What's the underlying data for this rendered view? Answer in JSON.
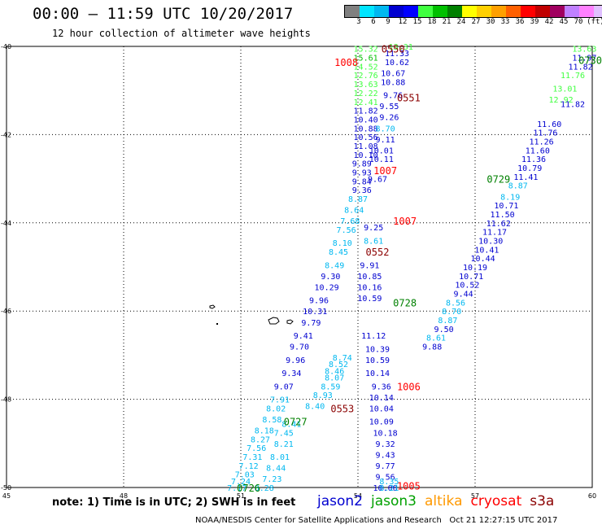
{
  "header": {
    "title": "00:00 – 11:59 UTC 10/20/2017",
    "subtitle": "12 hour collection of altimeter wave heights"
  },
  "colorbar": {
    "colors": [
      "#808080",
      "#00e5ff",
      "#00b8f0",
      "#0000d0",
      "#0000ff",
      "#40ff40",
      "#00c000",
      "#008000",
      "#ffff00",
      "#ffd000",
      "#ffa000",
      "#ff6000",
      "#ff0000",
      "#c00000",
      "#a00060",
      "#c080ff",
      "#ff80ff",
      "#e0c0ff",
      "#000000"
    ],
    "labels": [
      "3",
      "6",
      "9",
      "12",
      "15",
      "18",
      "21",
      "24",
      "27",
      "30",
      "33",
      "36",
      "39",
      "42",
      "45",
      "70",
      "(ft)"
    ]
  },
  "map": {
    "lon_ticks": [
      "45",
      "48",
      "51",
      "54",
      "57",
      "60"
    ],
    "lat_ticks": [
      "-40",
      "-42",
      "-44",
      "-46",
      "-48",
      "-50"
    ]
  },
  "passes": [
    {
      "id": "0550",
      "sat": "cryosat",
      "color": "#8b0000",
      "lon": 54.9,
      "lat": -40.05
    },
    {
      "id": "1008",
      "sat": "altika-red",
      "color": "#ff0000",
      "lon": 53.7,
      "lat": -40.35
    },
    {
      "id": "0551",
      "sat": "cryosat",
      "color": "#8b0000",
      "lon": 55.3,
      "lat": -41.15
    },
    {
      "id": "1007",
      "sat": "red",
      "color": "#ff0000",
      "lon": 54.7,
      "lat": -42.8
    },
    {
      "id": "1007",
      "sat": "red",
      "color": "#ff0000",
      "lon": 55.2,
      "lat": -43.95
    },
    {
      "id": "0552",
      "sat": "cryosat",
      "color": "#8b0000",
      "lon": 54.5,
      "lat": -44.65
    },
    {
      "id": "0728",
      "sat": "jason3",
      "color": "#008000",
      "lon": 55.2,
      "lat": -45.8
    },
    {
      "id": "1006",
      "sat": "red",
      "color": "#ff0000",
      "lon": 55.3,
      "lat": -47.7
    },
    {
      "id": "0553",
      "sat": "cryosat",
      "color": "#8b0000",
      "lon": 53.6,
      "lat": -48.2
    },
    {
      "id": "0727",
      "sat": "jason3",
      "color": "#008000",
      "lon": 52.4,
      "lat": -48.5
    },
    {
      "id": "1005",
      "sat": "red",
      "color": "#ff0000",
      "lon": 55.3,
      "lat": -49.95
    },
    {
      "id": "0726",
      "sat": "jason3",
      "color": "#008000",
      "lon": 51.2,
      "lat": -50.0
    },
    {
      "id": "0729",
      "sat": "jason3",
      "color": "#008000",
      "lon": 57.6,
      "lat": -43.0
    },
    {
      "id": "0730",
      "sat": "jason3",
      "color": "#008000",
      "lon": 60.0,
      "lat": -40.3
    }
  ],
  "swh_labels": [
    {
      "v": "15.32",
      "lon": 54.2,
      "lat": -40.05,
      "c": "#40ff40"
    },
    {
      "v": "15.61",
      "lon": 54.2,
      "lat": -40.25,
      "c": "#00c000"
    },
    {
      "v": "14.52",
      "lon": 54.2,
      "lat": -40.45,
      "c": "#40ff40"
    },
    {
      "v": "12.76",
      "lon": 54.2,
      "lat": -40.65,
      "c": "#40ff40"
    },
    {
      "v": "13.63",
      "lon": 54.2,
      "lat": -40.85,
      "c": "#40ff40"
    },
    {
      "v": "12.22",
      "lon": 54.2,
      "lat": -41.05,
      "c": "#40ff40"
    },
    {
      "v": "12.41",
      "lon": 54.2,
      "lat": -41.25,
      "c": "#40ff40"
    },
    {
      "v": "11.82",
      "lon": 54.2,
      "lat": -41.45,
      "c": "#0000d0"
    },
    {
      "v": "10.40",
      "lon": 54.2,
      "lat": -41.65,
      "c": "#0000d0"
    },
    {
      "v": "10.88",
      "lon": 54.2,
      "lat": -41.85,
      "c": "#0000d0"
    },
    {
      "v": "10.56",
      "lon": 54.2,
      "lat": -42.05,
      "c": "#0000d0"
    },
    {
      "v": "11.08",
      "lon": 54.2,
      "lat": -42.25,
      "c": "#0000d0"
    },
    {
      "v": "10.10",
      "lon": 54.2,
      "lat": -42.45,
      "c": "#0000d0"
    },
    {
      "v": "9.89",
      "lon": 54.1,
      "lat": -42.65,
      "c": "#0000d0"
    },
    {
      "v": "9.93",
      "lon": 54.1,
      "lat": -42.85,
      "c": "#0000d0"
    },
    {
      "v": "9.84",
      "lon": 54.1,
      "lat": -43.05,
      "c": "#0000d0"
    },
    {
      "v": "9.36",
      "lon": 54.1,
      "lat": -43.25,
      "c": "#0000d0"
    },
    {
      "v": "8.87",
      "lon": 54.0,
      "lat": -43.45,
      "c": "#00b8f0"
    },
    {
      "v": "8.64",
      "lon": 53.9,
      "lat": -43.7,
      "c": "#00b8f0"
    },
    {
      "v": "7.68",
      "lon": 53.8,
      "lat": -43.95,
      "c": "#00b8f0"
    },
    {
      "v": "7.56",
      "lon": 53.7,
      "lat": -44.15,
      "c": "#00b8f0"
    },
    {
      "v": "8.10",
      "lon": 53.6,
      "lat": -44.45,
      "c": "#00b8f0"
    },
    {
      "v": "8.45",
      "lon": 53.5,
      "lat": -44.65,
      "c": "#00b8f0"
    },
    {
      "v": "8.49",
      "lon": 53.4,
      "lat": -44.95,
      "c": "#00b8f0"
    },
    {
      "v": "9.30",
      "lon": 53.3,
      "lat": -45.2,
      "c": "#0000d0"
    },
    {
      "v": "10.29",
      "lon": 53.2,
      "lat": -45.45,
      "c": "#0000d0"
    },
    {
      "v": "9.96",
      "lon": 53.0,
      "lat": -45.75,
      "c": "#0000d0"
    },
    {
      "v": "10.31",
      "lon": 52.9,
      "lat": -46.0,
      "c": "#0000d0"
    },
    {
      "v": "9.79",
      "lon": 52.8,
      "lat": -46.25,
      "c": "#0000d0"
    },
    {
      "v": "9.41",
      "lon": 52.6,
      "lat": -46.55,
      "c": "#0000d0"
    },
    {
      "v": "9.70",
      "lon": 52.5,
      "lat": -46.8,
      "c": "#0000d0"
    },
    {
      "v": "9.96",
      "lon": 52.4,
      "lat": -47.1,
      "c": "#0000d0"
    },
    {
      "v": "9.34",
      "lon": 52.3,
      "lat": -47.4,
      "c": "#0000d0"
    },
    {
      "v": "9.07",
      "lon": 52.1,
      "lat": -47.7,
      "c": "#0000d0"
    },
    {
      "v": "7.91",
      "lon": 52.0,
      "lat": -48.0,
      "c": "#00b8f0"
    },
    {
      "v": "8.02",
      "lon": 51.9,
      "lat": -48.2,
      "c": "#00b8f0"
    },
    {
      "v": "8.58",
      "lon": 51.8,
      "lat": -48.45,
      "c": "#00b8f0"
    },
    {
      "v": "8.18",
      "lon": 51.6,
      "lat": -48.7,
      "c": "#00b8f0"
    },
    {
      "v": "8.27",
      "lon": 51.5,
      "lat": -48.9,
      "c": "#00b8f0"
    },
    {
      "v": "7.56",
      "lon": 51.4,
      "lat": -49.1,
      "c": "#00b8f0"
    },
    {
      "v": "7.31",
      "lon": 51.3,
      "lat": -49.3,
      "c": "#00b8f0"
    },
    {
      "v": "7.12",
      "lon": 51.2,
      "lat": -49.5,
      "c": "#00b8f0"
    },
    {
      "v": "7.03",
      "lon": 51.1,
      "lat": -49.7,
      "c": "#00b8f0"
    },
    {
      "v": "7.24",
      "lon": 51.0,
      "lat": -49.85,
      "c": "#00b8f0"
    },
    {
      "v": "7.17",
      "lon": 50.9,
      "lat": -50.0,
      "c": "#00b8f0"
    },
    {
      "v": "13.31",
      "lon": 55.1,
      "lat": -40.0,
      "c": "#40ff40"
    },
    {
      "v": "11.33",
      "lon": 55.0,
      "lat": -40.15,
      "c": "#0000d0"
    },
    {
      "v": "10.62",
      "lon": 55.0,
      "lat": -40.35,
      "c": "#0000d0"
    },
    {
      "v": "10.67",
      "lon": 54.9,
      "lat": -40.6,
      "c": "#0000d0"
    },
    {
      "v": "10.88",
      "lon": 54.9,
      "lat": -40.8,
      "c": "#0000d0"
    },
    {
      "v": "9.76",
      "lon": 54.9,
      "lat": -41.1,
      "c": "#0000d0"
    },
    {
      "v": "9.55",
      "lon": 54.8,
      "lat": -41.35,
      "c": "#0000d0"
    },
    {
      "v": "9.26",
      "lon": 54.8,
      "lat": -41.6,
      "c": "#0000d0"
    },
    {
      "v": "8.70",
      "lon": 54.7,
      "lat": -41.85,
      "c": "#00b8f0"
    },
    {
      "v": "9.11",
      "lon": 54.7,
      "lat": -42.1,
      "c": "#0000d0"
    },
    {
      "v": "10.01",
      "lon": 54.6,
      "lat": -42.35,
      "c": "#0000d0"
    },
    {
      "v": "10.11",
      "lon": 54.6,
      "lat": -42.55,
      "c": "#0000d0"
    },
    {
      "v": "9.67",
      "lon": 54.5,
      "lat": -43.0,
      "c": "#0000d0"
    },
    {
      "v": "9.25",
      "lon": 54.4,
      "lat": -44.1,
      "c": "#0000d0"
    },
    {
      "v": "8.61",
      "lon": 54.4,
      "lat": -44.4,
      "c": "#00b8f0"
    },
    {
      "v": "9.91",
      "lon": 54.3,
      "lat": -44.95,
      "c": "#0000d0"
    },
    {
      "v": "10.85",
      "lon": 54.3,
      "lat": -45.2,
      "c": "#0000d0"
    },
    {
      "v": "10.16",
      "lon": 54.3,
      "lat": -45.45,
      "c": "#0000d0"
    },
    {
      "v": "10.59",
      "lon": 54.3,
      "lat": -45.7,
      "c": "#0000d0"
    },
    {
      "v": "11.12",
      "lon": 54.4,
      "lat": -46.55,
      "c": "#0000d0"
    },
    {
      "v": "10.39",
      "lon": 54.5,
      "lat": -46.85,
      "c": "#0000d0"
    },
    {
      "v": "10.59",
      "lon": 54.5,
      "lat": -47.1,
      "c": "#0000d0"
    },
    {
      "v": "10.14",
      "lon": 54.5,
      "lat": -47.4,
      "c": "#0000d0"
    },
    {
      "v": "9.36",
      "lon": 54.6,
      "lat": -47.7,
      "c": "#0000d0"
    },
    {
      "v": "10.14",
      "lon": 54.6,
      "lat": -47.95,
      "c": "#0000d0"
    },
    {
      "v": "10.04",
      "lon": 54.6,
      "lat": -48.2,
      "c": "#0000d0"
    },
    {
      "v": "10.09",
      "lon": 54.6,
      "lat": -48.5,
      "c": "#0000d0"
    },
    {
      "v": "10.18",
      "lon": 54.7,
      "lat": -48.75,
      "c": "#0000d0"
    },
    {
      "v": "9.32",
      "lon": 54.7,
      "lat": -49.0,
      "c": "#0000d0"
    },
    {
      "v": "9.43",
      "lon": 54.7,
      "lat": -49.25,
      "c": "#0000d0"
    },
    {
      "v": "9.77",
      "lon": 54.7,
      "lat": -49.5,
      "c": "#0000d0"
    },
    {
      "v": "9.56",
      "lon": 54.7,
      "lat": -49.75,
      "c": "#0000d0"
    },
    {
      "v": "10.00",
      "lon": 54.7,
      "lat": -50.0,
      "c": "#0000d0"
    },
    {
      "v": "13.63",
      "lon": 59.8,
      "lat": -40.05,
      "c": "#40ff40"
    },
    {
      "v": "11.97",
      "lon": 59.8,
      "lat": -40.25,
      "c": "#0000d0"
    },
    {
      "v": "11.82",
      "lon": 59.7,
      "lat": -40.45,
      "c": "#0000d0"
    },
    {
      "v": "11.76",
      "lon": 59.5,
      "lat": -40.65,
      "c": "#40ff40"
    },
    {
      "v": "13.01",
      "lon": 59.3,
      "lat": -40.95,
      "c": "#40ff40"
    },
    {
      "v": "12.92",
      "lon": 59.2,
      "lat": -41.2,
      "c": "#40ff40"
    },
    {
      "v": "11.82",
      "lon": 59.5,
      "lat": -41.3,
      "c": "#0000d0"
    },
    {
      "v": "11.60",
      "lon": 58.9,
      "lat": -41.75,
      "c": "#0000d0"
    },
    {
      "v": "11.76",
      "lon": 58.8,
      "lat": -41.95,
      "c": "#0000d0"
    },
    {
      "v": "11.26",
      "lon": 58.7,
      "lat": -42.15,
      "c": "#0000d0"
    },
    {
      "v": "11.60",
      "lon": 58.6,
      "lat": -42.35,
      "c": "#0000d0"
    },
    {
      "v": "11.36",
      "lon": 58.5,
      "lat": -42.55,
      "c": "#0000d0"
    },
    {
      "v": "10.79",
      "lon": 58.4,
      "lat": -42.75,
      "c": "#0000d0"
    },
    {
      "v": "11.41",
      "lon": 58.3,
      "lat": -42.95,
      "c": "#0000d0"
    },
    {
      "v": "8.87",
      "lon": 58.1,
      "lat": -43.15,
      "c": "#00b8f0"
    },
    {
      "v": "8.19",
      "lon": 57.9,
      "lat": -43.4,
      "c": "#00b8f0"
    },
    {
      "v": "10.71",
      "lon": 57.8,
      "lat": -43.6,
      "c": "#0000d0"
    },
    {
      "v": "11.50",
      "lon": 57.7,
      "lat": -43.8,
      "c": "#0000d0"
    },
    {
      "v": "11.62",
      "lon": 57.6,
      "lat": -44.0,
      "c": "#0000d0"
    },
    {
      "v": "11.17",
      "lon": 57.5,
      "lat": -44.2,
      "c": "#0000d0"
    },
    {
      "v": "10.30",
      "lon": 57.4,
      "lat": -44.4,
      "c": "#0000d0"
    },
    {
      "v": "10.41",
      "lon": 57.3,
      "lat": -44.6,
      "c": "#0000d0"
    },
    {
      "v": "10.44",
      "lon": 57.2,
      "lat": -44.8,
      "c": "#0000d0"
    },
    {
      "v": "10.19",
      "lon": 57.0,
      "lat": -45.0,
      "c": "#0000d0"
    },
    {
      "v": "10.71",
      "lon": 56.9,
      "lat": -45.2,
      "c": "#0000d0"
    },
    {
      "v": "10.52",
      "lon": 56.8,
      "lat": -45.4,
      "c": "#0000d0"
    },
    {
      "v": "9.44",
      "lon": 56.7,
      "lat": -45.6,
      "c": "#0000d0"
    },
    {
      "v": "8.56",
      "lon": 56.5,
      "lat": -45.8,
      "c": "#00b8f0"
    },
    {
      "v": "8.70",
      "lon": 56.4,
      "lat": -46.0,
      "c": "#00b8f0"
    },
    {
      "v": "8.87",
      "lon": 56.3,
      "lat": -46.2,
      "c": "#00b8f0"
    },
    {
      "v": "9.50",
      "lon": 56.2,
      "lat": -46.4,
      "c": "#0000d0"
    },
    {
      "v": "8.61",
      "lon": 56.0,
      "lat": -46.6,
      "c": "#00b8f0"
    },
    {
      "v": "9.88",
      "lon": 55.9,
      "lat": -46.8,
      "c": "#0000d0"
    },
    {
      "v": "8.74",
      "lon": 53.6,
      "lat": -47.05,
      "c": "#00b8f0"
    },
    {
      "v": "8.52",
      "lon": 53.5,
      "lat": -47.2,
      "c": "#00b8f0"
    },
    {
      "v": "8.46",
      "lon": 53.4,
      "lat": -47.35,
      "c": "#00b8f0"
    },
    {
      "v": "8.07",
      "lon": 53.4,
      "lat": -47.5,
      "c": "#00b8f0"
    },
    {
      "v": "8.59",
      "lon": 53.3,
      "lat": -47.7,
      "c": "#00b8f0"
    },
    {
      "v": "8.93",
      "lon": 53.1,
      "lat": -47.9,
      "c": "#00b8f0"
    },
    {
      "v": "8.40",
      "lon": 52.9,
      "lat": -48.15,
      "c": "#00b8f0"
    },
    {
      "v": "8.41",
      "lon": 52.3,
      "lat": -48.55,
      "c": "#00b8f0"
    },
    {
      "v": "7.45",
      "lon": 52.1,
      "lat": -48.75,
      "c": "#00b8f0"
    },
    {
      "v": "8.21",
      "lon": 52.1,
      "lat": -49.0,
      "c": "#00b8f0"
    },
    {
      "v": "8.01",
      "lon": 52.0,
      "lat": -49.3,
      "c": "#00b8f0"
    },
    {
      "v": "8.44",
      "lon": 51.9,
      "lat": -49.55,
      "c": "#00b8f0"
    },
    {
      "v": "7.23",
      "lon": 51.8,
      "lat": -49.8,
      "c": "#00b8f0"
    },
    {
      "v": "8.28",
      "lon": 51.6,
      "lat": -50.0,
      "c": "#00b8f0"
    },
    {
      "v": "8.35",
      "lon": 54.8,
      "lat": -49.85,
      "c": "#00b8f0"
    },
    {
      "v": "8.21",
      "lon": 54.8,
      "lat": -50.0,
      "c": "#00b8f0"
    }
  ],
  "note": "note: 1) Time is in UTC; 2) SWH is in feet",
  "legend": [
    {
      "label": "jason2",
      "color": "#0000d0"
    },
    {
      "label": "jason3",
      "color": "#00a000"
    },
    {
      "label": "altika",
      "color": "#ff9900"
    },
    {
      "label": "cryosat",
      "color": "#ff0000"
    },
    {
      "label": "s3a",
      "color": "#8b0000"
    }
  ],
  "footer": "NOAA/NESDIS Center for Satellite Applications and Research   Oct 21 12:27:15 UTC 2017"
}
